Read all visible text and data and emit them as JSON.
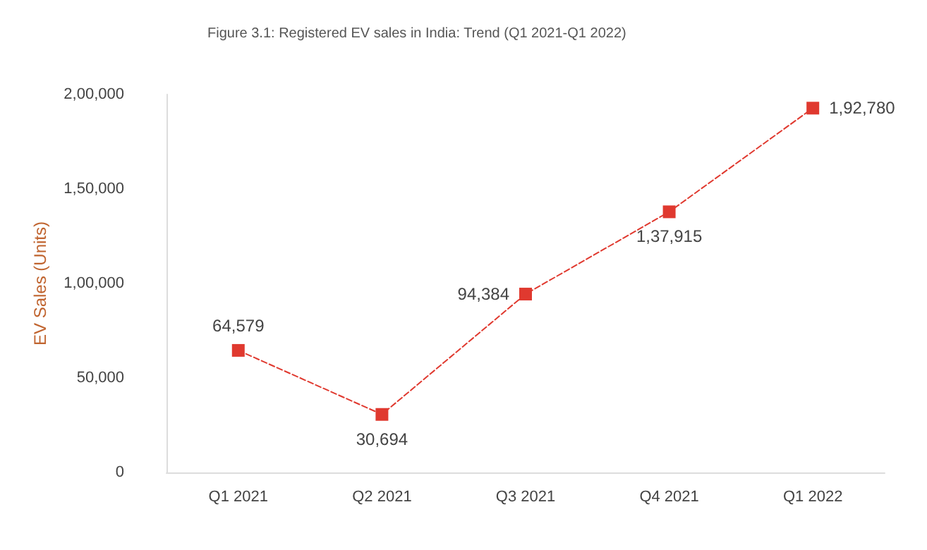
{
  "chart_data": {
    "type": "line",
    "title": "Figure 3.1: Registered EV sales in India: Trend (Q1 2021-Q1 2022)",
    "ylabel": "EV Sales (Units)",
    "categories": [
      "Q1 2021",
      "Q2 2021",
      "Q3 2021",
      "Q4 2021",
      "Q1 2022"
    ],
    "series": [
      {
        "color": "#e0392f",
        "values": [
          64579,
          30694,
          94384,
          137915,
          192780
        ],
        "value_labels": [
          "64,579",
          "30,694",
          "94,384",
          "1,37,915",
          "1,92,780"
        ]
      }
    ],
    "ylim": [
      0,
      200000
    ],
    "yticks": [
      {
        "value": 0,
        "label": "0"
      },
      {
        "value": 50000,
        "label": "50,000"
      },
      {
        "value": 100000,
        "label": "1,00,000"
      },
      {
        "value": 150000,
        "label": "1,50,000"
      },
      {
        "value": 200000,
        "label": "2,00,000"
      }
    ],
    "grid": false,
    "marker": "square",
    "line_style": "dashed"
  }
}
